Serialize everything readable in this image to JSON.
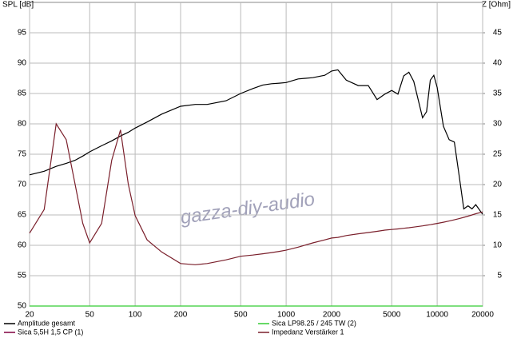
{
  "chart_data": {
    "type": "line",
    "ylabel": "SPL [dB]",
    "y2label": "Z [Ohm]",
    "watermark": "gazza-diy-audio",
    "xscale": "log",
    "grid": true,
    "x": [
      20,
      25,
      30,
      35,
      40,
      45,
      50,
      60,
      70,
      80,
      90,
      100,
      120,
      150,
      200,
      250,
      300,
      400,
      500,
      600,
      700,
      800,
      900,
      1000,
      1200,
      1500,
      1800,
      2000,
      2200,
      2500,
      3000,
      3500,
      4000,
      4500,
      5000,
      5500,
      6000,
      6500,
      7000,
      8000,
      8500,
      9000,
      9500,
      10000,
      11000,
      12000,
      13000,
      14000,
      15000,
      16000,
      17000,
      18000,
      20000
    ],
    "xlim": [
      20,
      20000
    ],
    "xticks": [
      20,
      50,
      100,
      200,
      500,
      1000,
      2000,
      5000,
      10000,
      20000
    ],
    "ylim": [
      50,
      100
    ],
    "yticks": [
      50,
      55,
      60,
      65,
      70,
      75,
      80,
      85,
      90,
      95
    ],
    "y2lim": [
      0,
      50
    ],
    "y2ticks": [
      5,
      10,
      15,
      20,
      25,
      30,
      35,
      40,
      45
    ],
    "series": [
      {
        "name": "Amplitude gesamt",
        "color": "#000000",
        "values": [
          71.6,
          72.2,
          73.0,
          73.5,
          74.0,
          74.7,
          75.4,
          76.4,
          77.2,
          78.0,
          78.6,
          79.3,
          80.3,
          81.6,
          82.9,
          83.2,
          83.2,
          83.8,
          85.0,
          85.8,
          86.4,
          86.6,
          86.7,
          86.8,
          87.4,
          87.6,
          88.0,
          88.7,
          88.9,
          87.2,
          86.3,
          86.3,
          84.0,
          84.9,
          85.5,
          84.9,
          87.9,
          88.5,
          87.0,
          81.0,
          82.0,
          87.2,
          88.0,
          86.0,
          79.6,
          77.4,
          77.0,
          71.4,
          66.0,
          66.5,
          66.0,
          66.7,
          65.1
        ]
      },
      {
        "name": "Sica LP98.25 / 245 TW (2)",
        "color": "#33cc33",
        "values": [
          50,
          50,
          50,
          50,
          50,
          50,
          50,
          50,
          50,
          50,
          50,
          50,
          50,
          50,
          50,
          50,
          50,
          50,
          50,
          50,
          50,
          50,
          50,
          50,
          50,
          50,
          50,
          50,
          50,
          50,
          50,
          50,
          50,
          50,
          50,
          50,
          50,
          50,
          50,
          50,
          50,
          50,
          50,
          50,
          50,
          50,
          50,
          50,
          50,
          50,
          50,
          50,
          50
        ]
      },
      {
        "name": "Sica 5,5H 1,5 CP (1)",
        "color": "#800040",
        "values": [
          null,
          null,
          null,
          null,
          null,
          null,
          null,
          null,
          null,
          null,
          null,
          null,
          null,
          null,
          null,
          null,
          null,
          null,
          null,
          null,
          null,
          null,
          null,
          null,
          null,
          null,
          null,
          null,
          null,
          null,
          null,
          null,
          null,
          null,
          null,
          null,
          null,
          null,
          null,
          null,
          null,
          null,
          null,
          null,
          null,
          null,
          null,
          null,
          null,
          null,
          null,
          null,
          null
        ]
      },
      {
        "name": "Impedanz Verstärker 1",
        "color": "#7a1f2b",
        "axis": "y2",
        "values": [
          12,
          15.9,
          30,
          27.4,
          20.1,
          13.6,
          10.4,
          13.6,
          24,
          29,
          20.1,
          14.9,
          10.9,
          8.9,
          7.0,
          6.8,
          7.0,
          7.6,
          8.2,
          8.4,
          8.6,
          8.8,
          9.0,
          9.2,
          9.7,
          10.4,
          10.9,
          11.2,
          11.3,
          11.6,
          11.9,
          12.1,
          12.3,
          12.5,
          12.6,
          12.7,
          12.8,
          12.9,
          13.0,
          13.2,
          13.3,
          13.4,
          13.5,
          13.6,
          13.8,
          14.0,
          14.2,
          14.4,
          14.6,
          14.8,
          15.0,
          15.2,
          15.5
        ]
      }
    ]
  }
}
